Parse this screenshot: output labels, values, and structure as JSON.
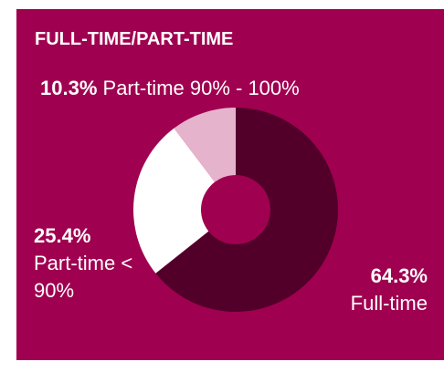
{
  "chart_data": {
    "type": "donut",
    "title": "FULL-TIME/PART-TIME",
    "categories": [
      "Full-time",
      "Part-time < 90%",
      "Part-time 90% - 100%"
    ],
    "values": [
      64.3,
      25.4,
      10.3
    ],
    "value_labels": [
      "64.3%",
      "25.4%",
      "10.3%"
    ],
    "colors": [
      "#520029",
      "#ffffff",
      "#e6b3cd"
    ]
  }
}
